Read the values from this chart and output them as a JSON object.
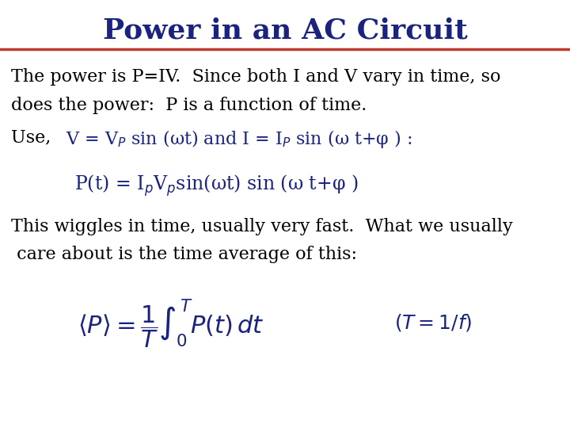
{
  "title": "Power in an AC Circuit",
  "title_color": "#1a237e",
  "title_fontsize": 26,
  "bg_color": "#ffffff",
  "line_color": "#c0392b",
  "text_color": "#000000",
  "blue_color": "#1a237e",
  "body_fontsize": 16,
  "line1": "The power is P=IV.  Since both I and V vary in time, so",
  "line2": "does the power:  P is a function of time.",
  "use_line_black": "Use,  ",
  "use_line_blue": "V = V$_{P}$ sin (ωt) and I = I$_{P}$ sin (ω t+φ ) :",
  "pt_line": "P(t) = I$_{p}$V$_{p}$sin(ωt) sin (ω t+φ )",
  "body2_line1": "This wiggles in time, usually very fast.  What we usually",
  "body2_line2": " care about is the time average of this:",
  "formula": "$\\langle P \\rangle = \\dfrac{1}{T}\\int_0^T P(t)\\,dt$",
  "italic_note": "$(T=1/f)$"
}
